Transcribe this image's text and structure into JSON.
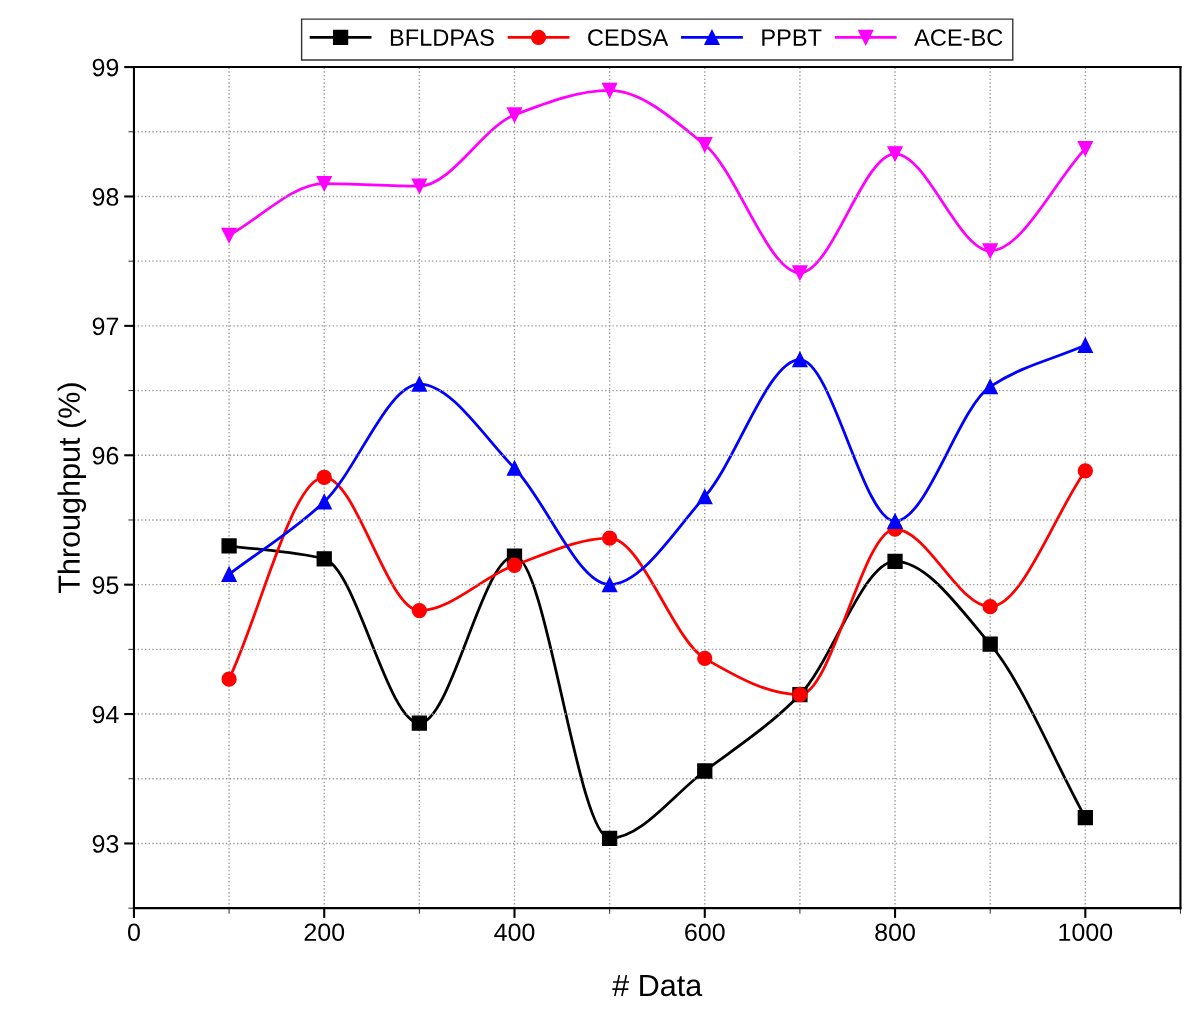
{
  "chart_data": {
    "type": "line",
    "xlabel": "# Data",
    "ylabel": "Throughput (%)",
    "x": [
      100,
      200,
      300,
      400,
      500,
      600,
      700,
      800,
      900,
      1000
    ],
    "series": [
      {
        "name": "BFLDPAS",
        "color": "#000000",
        "marker": "square",
        "values": [
          95.3,
          95.2,
          93.93,
          95.22,
          93.04,
          93.56,
          94.15,
          95.18,
          94.54,
          93.2
        ]
      },
      {
        "name": "CEDSA",
        "color": "#ff0000",
        "marker": "circle",
        "values": [
          94.27,
          95.83,
          94.8,
          95.15,
          95.36,
          94.43,
          94.15,
          95.43,
          94.83,
          95.88
        ]
      },
      {
        "name": "PPBT",
        "color": "#0000ff",
        "marker": "triangle",
        "values": [
          95.08,
          95.64,
          96.55,
          95.9,
          95.0,
          95.68,
          96.74,
          95.49,
          96.53,
          96.85
        ]
      },
      {
        "name": "ACE-BC",
        "color": "#ff00ff",
        "marker": "triangle_down",
        "values": [
          97.7,
          98.1,
          98.08,
          98.63,
          98.82,
          98.4,
          97.41,
          98.33,
          97.58,
          98.37
        ]
      }
    ],
    "xlim": [
      0,
      1100
    ],
    "xticks": [
      0,
      200,
      400,
      600,
      800,
      1000
    ],
    "ylim": [
      92.5,
      99
    ],
    "yticks": [
      93,
      94,
      95,
      96,
      97,
      98,
      99
    ],
    "grid": true,
    "legend": "top",
    "line_style": "solid"
  }
}
